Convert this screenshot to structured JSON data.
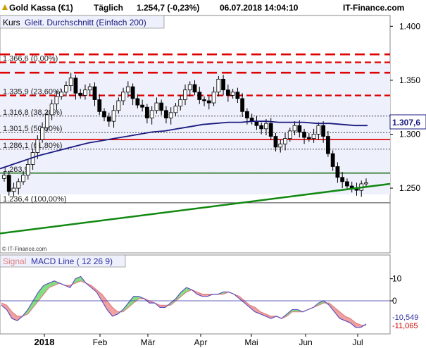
{
  "header": {
    "instrument": "Gold Kassa (€1)",
    "interval": "Täglich",
    "last": "1.254,7 (-0,23%)",
    "datetime": "06.07.2018 14:04:10",
    "brand": "IT-Finance.com"
  },
  "legend": {
    "kurs": "Kurs",
    "sma_label": "Gleit. Durchschnitt (Einfach 200)",
    "signal": "Signal",
    "macd_label": "MACD Line ( 12 26 9)",
    "copyright": "© IT-Finance.com"
  },
  "colors": {
    "background": "#ffffff",
    "panel_bg": "#eef0fc",
    "sma": "#1a1a80",
    "trendline": "#118811",
    "horizontal_green": "#118811",
    "fib_lines": "#e00000",
    "signal_line": "#e08080",
    "macd_line": "#6050c0",
    "macd_fill_positive": "#80e080",
    "macd_fill_negative": "#f0a0a0"
  },
  "chart_data": [
    {
      "type": "candlestick",
      "title": "Gold Kassa (€1)",
      "x_ticks": [
        "2018",
        "Feb",
        "Mär",
        "Apr",
        "Mai",
        "Jun",
        "Jul"
      ],
      "y_ticks": [
        "1.400",
        "1.350",
        "1.300",
        "1.250"
      ],
      "ylim": [
        1190,
        1410
      ],
      "current_price_label": "1.307,6",
      "close": [
        1262,
        1247,
        1250,
        1256,
        1262,
        1272,
        1283,
        1295,
        1306,
        1318,
        1328,
        1335,
        1339,
        1345,
        1352,
        1338,
        1336,
        1341,
        1344,
        1332,
        1321,
        1316,
        1312,
        1322,
        1331,
        1339,
        1344,
        1333,
        1327,
        1325,
        1315,
        1322,
        1329,
        1322,
        1315,
        1320,
        1326,
        1332,
        1341,
        1346,
        1339,
        1332,
        1331,
        1329,
        1339,
        1351,
        1341,
        1336,
        1339,
        1333,
        1321,
        1315,
        1312,
        1308,
        1305,
        1310,
        1298,
        1288,
        1291,
        1296,
        1303,
        1308,
        1302,
        1297,
        1296,
        1300,
        1308,
        1298,
        1282,
        1270,
        1260,
        1256,
        1252,
        1250,
        1248,
        1254,
        1255
      ],
      "sma200": [
        1268,
        1272,
        1276,
        1280,
        1283,
        1286,
        1289,
        1292,
        1294,
        1296,
        1298,
        1300,
        1302,
        1303,
        1305,
        1307,
        1309,
        1310,
        1311,
        1311,
        1312,
        1312,
        1311,
        1311,
        1311,
        1310,
        1310,
        1309,
        1308,
        1308
      ],
      "fib_levels": [
        {
          "label": "1.366,6 (0,00%)",
          "value": 1366.6,
          "style": "dashed"
        },
        {
          "label": "1.335,9 (23,60%)",
          "value": 1335.9,
          "style": "dashed"
        },
        {
          "label": "1.316,8 (38,20%)",
          "value": 1316.8,
          "style": "dotted"
        },
        {
          "label": "1.301,5 (50,00%)",
          "value": 1301.5,
          "style": "dotted"
        },
        {
          "label": "1.286,1 (61,80%)",
          "value": 1286.1,
          "style": "dotted"
        },
        {
          "label": "1.263,9",
          "value": 1263.9,
          "style": "dotted"
        },
        {
          "label": "1.236,4 (100,00%)",
          "value": 1236.4,
          "style": "solid"
        }
      ],
      "horizontal_lines": [
        1374,
        1357,
        1295,
        1264
      ],
      "trendline": [
        [
          0,
          1208
        ],
        [
          1,
          1254
        ]
      ]
    },
    {
      "type": "line",
      "title": "MACD Line ( 12 26 9)",
      "y_ticks": [
        "10",
        "0"
      ],
      "ylim": [
        -15,
        15
      ],
      "value_labels": [
        "-10,549",
        "-11,065"
      ],
      "macd": [
        -2,
        -4,
        -8,
        -9,
        -7,
        -4,
        0,
        4,
        7,
        8,
        9,
        8,
        7,
        6,
        10,
        11,
        8,
        6,
        4,
        0,
        -4,
        -7,
        -6,
        -4,
        -1,
        2,
        2,
        1,
        -1,
        -1,
        -3,
        -3,
        -1,
        1,
        4,
        6,
        5,
        3,
        2,
        2,
        3,
        3,
        4,
        4,
        3,
        1,
        -1,
        -3,
        -5,
        -6,
        -7,
        -8,
        -7,
        -8,
        -6,
        -4,
        -4,
        -5,
        -4,
        -3,
        -1,
        0,
        -2,
        -5,
        -8,
        -9,
        -10,
        -12,
        -12,
        -10.5
      ],
      "signal": [
        -1,
        -2,
        -5,
        -7,
        -7,
        -6,
        -3,
        0,
        3,
        6,
        7,
        8,
        7,
        7,
        8,
        9,
        8,
        7,
        5,
        3,
        0,
        -3,
        -5,
        -5,
        -3,
        -1,
        1,
        1,
        0,
        -1,
        -2,
        -2,
        -2,
        0,
        2,
        4,
        5,
        4,
        3,
        3,
        3,
        3,
        3,
        4,
        3,
        2,
        0,
        -2,
        -3,
        -5,
        -6,
        -7,
        -7,
        -8,
        -7,
        -5,
        -5,
        -5,
        -4,
        -3,
        -2,
        -1,
        -1,
        -3,
        -5,
        -7,
        -8,
        -10,
        -11,
        -11.1
      ]
    }
  ]
}
